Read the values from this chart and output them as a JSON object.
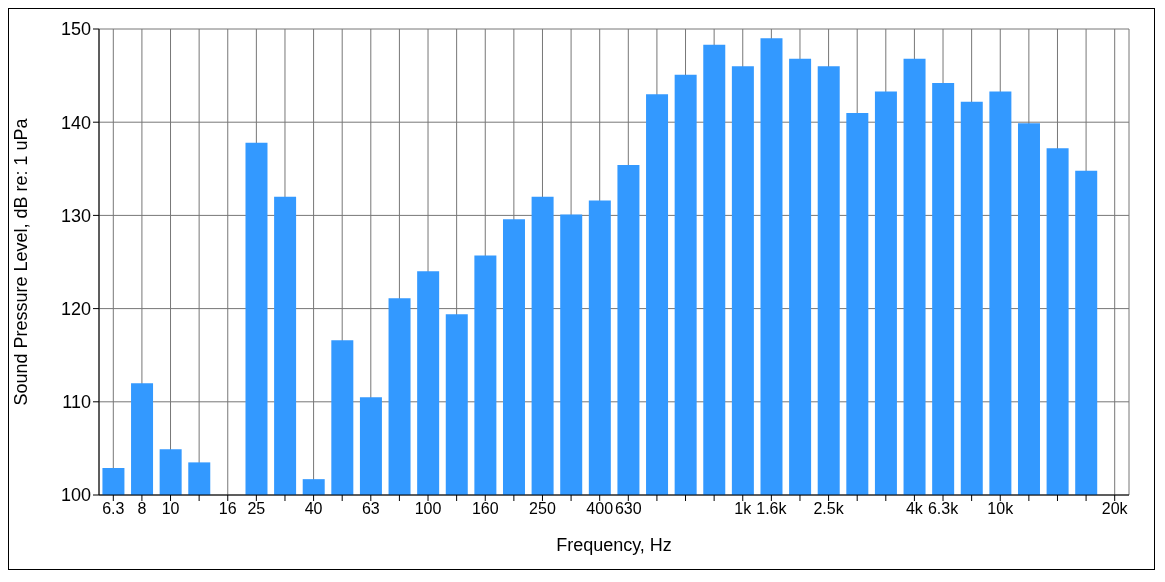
{
  "chart_data": {
    "type": "bar",
    "xlabel": "Frequency, Hz",
    "ylabel": "Sound Pressure Level, dB re: 1 uPa",
    "categories": [
      "6.3",
      "8",
      "10",
      null,
      "16",
      "25",
      null,
      "40",
      null,
      "63",
      null,
      "100",
      null,
      "160",
      null,
      "250",
      null,
      "400",
      "630",
      null,
      null,
      null,
      "1k",
      "1.6k",
      null,
      "2.5k",
      null,
      null,
      "4k",
      "6.3k",
      null,
      "10k",
      null,
      null,
      null,
      "20k"
    ],
    "values": [
      102.9,
      112,
      104.9,
      103.5,
      null,
      137.8,
      132,
      101.7,
      116.6,
      110.5,
      121.1,
      124,
      119.4,
      125.7,
      129.6,
      132,
      130.1,
      131.6,
      135.4,
      143,
      145.1,
      148.3,
      146,
      149,
      146.8,
      146,
      141,
      143.3,
      146.8,
      144.2,
      142.2,
      143.3,
      139.9,
      137.2,
      134.8,
      null
    ],
    "color": "#3399ff",
    "ylim": [
      100,
      150
    ],
    "yticks": [
      100,
      110,
      120,
      130,
      140,
      150
    ],
    "grid": true
  }
}
